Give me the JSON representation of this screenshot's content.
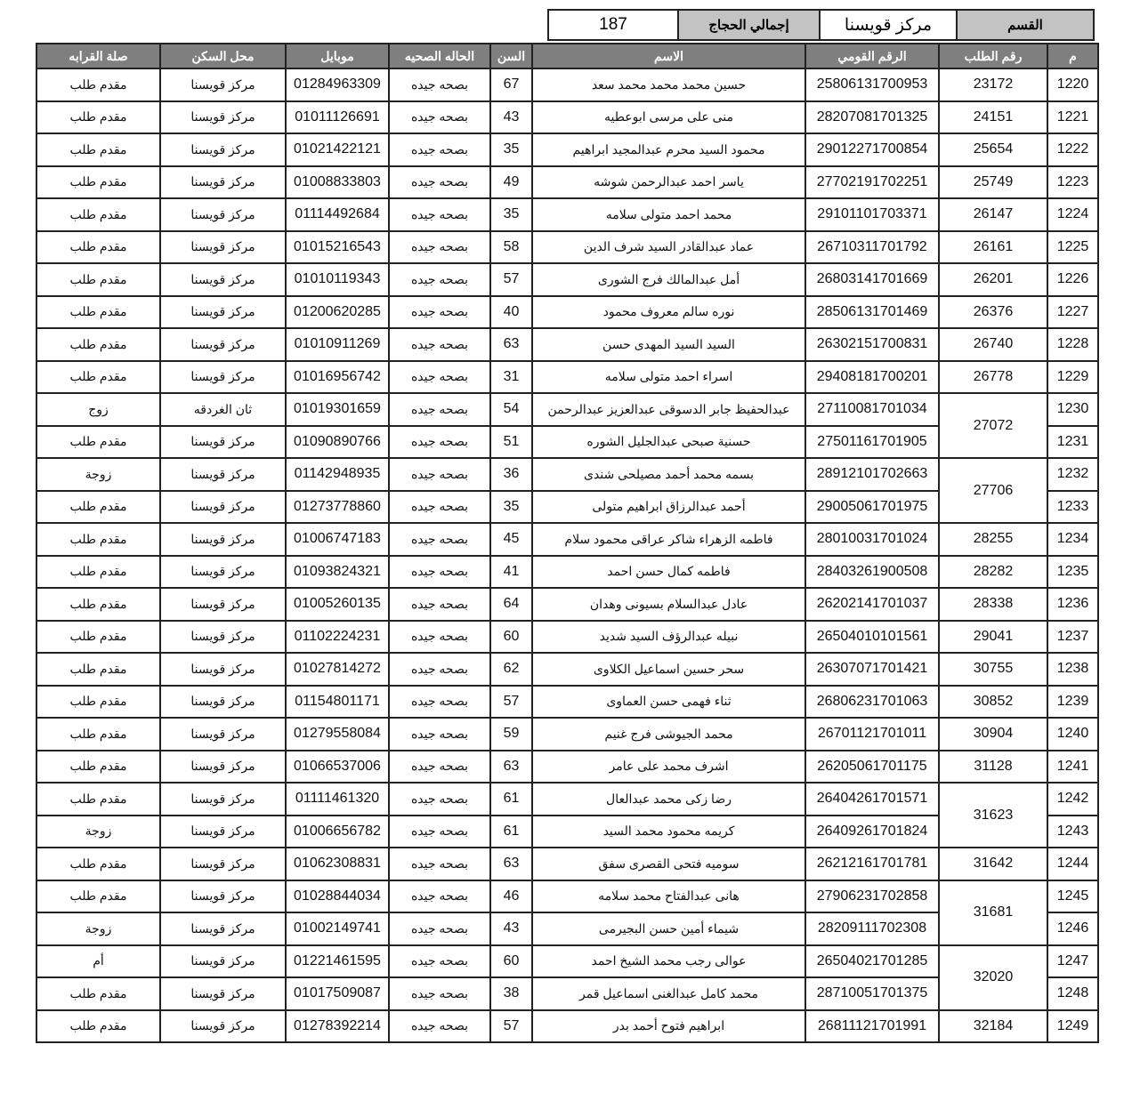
{
  "summary": {
    "section_label": "القسم",
    "section_value": "مركز قويسنا",
    "total_label": "إجمالي الحجاج",
    "total_value": "187"
  },
  "columns": [
    "م",
    "رقم الطلب",
    "الرقم القومي",
    "الاسم",
    "السن",
    "الحاله الصحيه",
    "موبايل",
    "محل السكن",
    "صلة القرابه"
  ],
  "rows": [
    [
      "1220",
      "23172",
      "25806131700953",
      "حسين محمد محمد محمد سعد",
      "67",
      "بصحه جيده",
      "01284963309",
      "مركز قويسنا",
      "مقدم طلب"
    ],
    [
      "1221",
      "24151",
      "28207081701325",
      "منى على مرسى ابوعطيه",
      "43",
      "بصحه جيده",
      "01011126691",
      "مركز قويسنا",
      "مقدم طلب"
    ],
    [
      "1222",
      "25654",
      "29012271700854",
      "محمود السيد محرم عبدالمجيد ابراهيم",
      "35",
      "بصحه جيده",
      "01021422121",
      "مركز قويسنا",
      "مقدم طلب"
    ],
    [
      "1223",
      "25749",
      "27702191702251",
      "ياسر احمد عبدالرحمن شوشه",
      "49",
      "بصحه جيده",
      "01008833803",
      "مركز قويسنا",
      "مقدم طلب"
    ],
    [
      "1224",
      "26147",
      "29101101703371",
      "محمد احمد متولى سلامه",
      "35",
      "بصحه جيده",
      "01114492684",
      "مركز قويسنا",
      "مقدم طلب"
    ],
    [
      "1225",
      "26161",
      "26710311701792",
      "عماد عبدالقادر السيد شرف الدين",
      "58",
      "بصحه جيده",
      "01015216543",
      "مركز قويسنا",
      "مقدم طلب"
    ],
    [
      "1226",
      "26201",
      "26803141701669",
      "أمل عبدالمالك فرج الشورى",
      "57",
      "بصحه جيده",
      "01010119343",
      "مركز قويسنا",
      "مقدم طلب"
    ],
    [
      "1227",
      "26376",
      "28506131701469",
      "نوره سالم معروف محمود",
      "40",
      "بصحه جيده",
      "01200620285",
      "مركز قويسنا",
      "مقدم طلب"
    ],
    [
      "1228",
      "26740",
      "26302151700831",
      "السيد السيد المهدى حسن",
      "63",
      "بصحه جيده",
      "01010911269",
      "مركز قويسنا",
      "مقدم طلب"
    ],
    [
      "1229",
      "26778",
      "29408181700201",
      "اسراء احمد متولى سلامه",
      "31",
      "بصحه جيده",
      "01016956742",
      "مركز قويسنا",
      "مقدم طلب"
    ],
    [
      "1230",
      "27072",
      "27110081701034",
      "عبدالحفيظ جابر الدسوقى عبدالعزيز عبدالرحمن",
      "54",
      "بصحه جيده",
      "01019301659",
      "ثان الغردقه",
      "زوج"
    ],
    [
      "1231",
      "27072",
      "27501161701905",
      "حسنية صبحى عبدالجليل الشوره",
      "51",
      "بصحه جيده",
      "01090890766",
      "مركز قويسنا",
      "مقدم طلب"
    ],
    [
      "1232",
      "27706",
      "28912101702663",
      "بسمه محمد أحمد مصيلحى شندى",
      "36",
      "بصحه جيده",
      "01142948935",
      "مركز قويسنا",
      "زوجة"
    ],
    [
      "1233",
      "27706",
      "29005061701975",
      "أحمد عبدالرزاق ابراهيم متولى",
      "35",
      "بصحه جيده",
      "01273778860",
      "مركز قويسنا",
      "مقدم طلب"
    ],
    [
      "1234",
      "28255",
      "28010031701024",
      "فاطمه الزهراء شاكر عراقى محمود سلام",
      "45",
      "بصحه جيده",
      "01006747183",
      "مركز قويسنا",
      "مقدم طلب"
    ],
    [
      "1235",
      "28282",
      "28403261900508",
      "فاطمه كمال حسن احمد",
      "41",
      "بصحه جيده",
      "01093824321",
      "مركز قويسنا",
      "مقدم طلب"
    ],
    [
      "1236",
      "28338",
      "26202141701037",
      "عادل عبدالسلام بسيونى وهدان",
      "64",
      "بصحه جيده",
      "01005260135",
      "مركز قويسنا",
      "مقدم طلب"
    ],
    [
      "1237",
      "29041",
      "26504010101561",
      "نبيله عبدالرؤف السيد شديد",
      "60",
      "بصحه جيده",
      "01102224231",
      "مركز قويسنا",
      "مقدم طلب"
    ],
    [
      "1238",
      "30755",
      "26307071701421",
      "سحر حسين اسماعيل الكلاوى",
      "62",
      "بصحه جيده",
      "01027814272",
      "مركز قويسنا",
      "مقدم طلب"
    ],
    [
      "1239",
      "30852",
      "26806231701063",
      "ثناء فهمى حسن العماوى",
      "57",
      "بصحه جيده",
      "01154801171",
      "مركز قويسنا",
      "مقدم طلب"
    ],
    [
      "1240",
      "30904",
      "26701121701011",
      "محمد الجيوشى فرج غنيم",
      "59",
      "بصحه جيده",
      "01279558084",
      "مركز قويسنا",
      "مقدم طلب"
    ],
    [
      "1241",
      "31128",
      "26205061701175",
      "اشرف محمد على عامر",
      "63",
      "بصحه جيده",
      "01066537006",
      "مركز قويسنا",
      "مقدم طلب"
    ],
    [
      "1242",
      "31623",
      "26404261701571",
      "رضا زكى محمد عبدالعال",
      "61",
      "بصحه جيده",
      "01111461320",
      "مركز قويسنا",
      "مقدم طلب"
    ],
    [
      "1243",
      "31623",
      "26409261701824",
      "كريمه محمود محمد السيد",
      "61",
      "بصحه جيده",
      "01006656782",
      "مركز قويسنا",
      "زوجة"
    ],
    [
      "1244",
      "31642",
      "26212161701781",
      "سوميه فتحى القصرى سفق",
      "63",
      "بصحه جيده",
      "01062308831",
      "مركز قويسنا",
      "مقدم طلب"
    ],
    [
      "1245",
      "31681",
      "27906231702858",
      "هانى عبدالفتاح محمد سلامه",
      "46",
      "بصحه جيده",
      "01028844034",
      "مركز قويسنا",
      "مقدم طلب"
    ],
    [
      "1246",
      "31681",
      "28209111702308",
      "شيماء أمين حسن البجيرمى",
      "43",
      "بصحه جيده",
      "01002149741",
      "مركز قويسنا",
      "زوجة"
    ],
    [
      "1247",
      "32020",
      "26504021701285",
      "عوالى رجب محمد الشيخ احمد",
      "60",
      "بصحه جيده",
      "01221461595",
      "مركز قويسنا",
      "أم"
    ],
    [
      "1248",
      "32020",
      "28710051701375",
      "محمد كامل عبدالغنى اسماعيل قمر",
      "38",
      "بصحه جيده",
      "01017509087",
      "مركز قويسنا",
      "مقدم طلب"
    ],
    [
      "1249",
      "32184",
      "26811121701991",
      "ابراهيم فتوح أحمد بدر",
      "57",
      "بصحه جيده",
      "01278392214",
      "مركز قويسنا",
      "مقدم طلب"
    ]
  ]
}
